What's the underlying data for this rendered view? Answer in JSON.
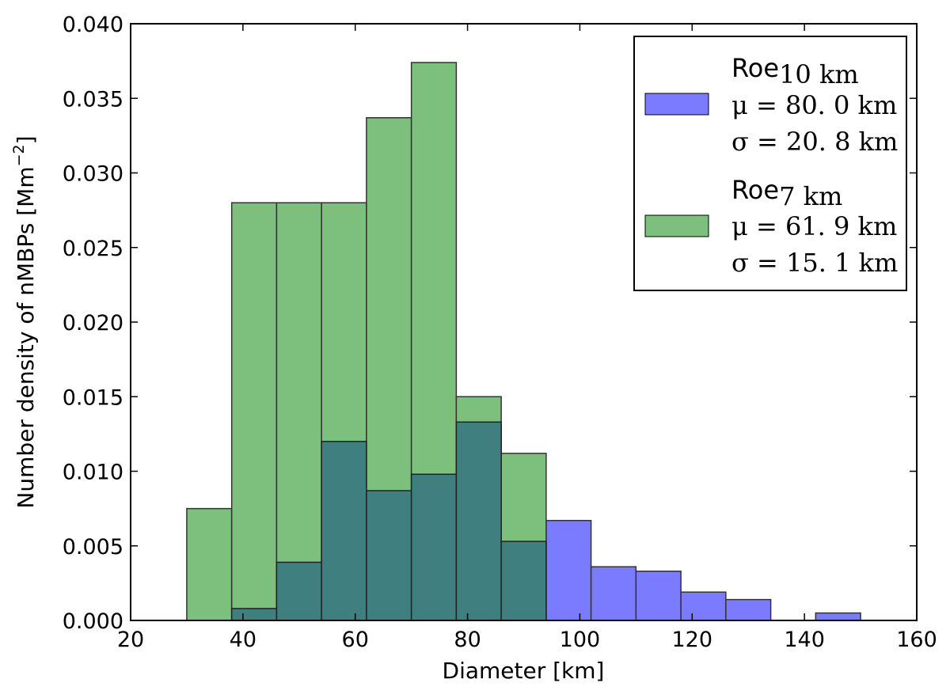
{
  "chart_data": {
    "type": "bar",
    "title": "",
    "xlabel": "Diameter [km]",
    "ylabel_main": "Number density of nMBPs [Mm",
    "ylabel_exp": "−2",
    "ylabel_close": "]",
    "xlim": [
      20,
      160
    ],
    "ylim": [
      0.0,
      0.04
    ],
    "xticks": [
      20,
      40,
      60,
      80,
      100,
      120,
      140,
      160
    ],
    "xtick_labels": [
      "20",
      "40",
      "60",
      "80",
      "100",
      "120",
      "140",
      "160"
    ],
    "yticks": [
      0.0,
      0.005,
      0.01,
      0.015,
      0.02,
      0.025,
      0.03,
      0.035,
      0.04
    ],
    "ytick_labels": [
      "0.000",
      "0.005",
      "0.010",
      "0.015",
      "0.020",
      "0.025",
      "0.030",
      "0.035",
      "0.040"
    ],
    "legend_position": "top-right",
    "series": [
      {
        "name": "Roe10km",
        "legend_base": "Roe",
        "legend_sub": "10 km",
        "legend_mu": "μ = 80. 0 km",
        "legend_sigma": "σ = 20. 8 km",
        "color": "#7b7bff",
        "bins": [
          {
            "x0": 38,
            "x1": 46,
            "value": 0.0008
          },
          {
            "x0": 46,
            "x1": 54,
            "value": 0.0039
          },
          {
            "x0": 54,
            "x1": 62,
            "value": 0.012
          },
          {
            "x0": 62,
            "x1": 70,
            "value": 0.0087
          },
          {
            "x0": 70,
            "x1": 78,
            "value": 0.0098
          },
          {
            "x0": 78,
            "x1": 86,
            "value": 0.0133
          },
          {
            "x0": 86,
            "x1": 94,
            "value": 0.0053
          },
          {
            "x0": 94,
            "x1": 102,
            "value": 0.0067
          },
          {
            "x0": 102,
            "x1": 110,
            "value": 0.0036
          },
          {
            "x0": 110,
            "x1": 118,
            "value": 0.0033
          },
          {
            "x0": 118,
            "x1": 126,
            "value": 0.0019
          },
          {
            "x0": 126,
            "x1": 134,
            "value": 0.0014
          },
          {
            "x0": 134,
            "x1": 142,
            "value": 0.0
          },
          {
            "x0": 142,
            "x1": 150,
            "value": 0.0005
          },
          {
            "x0": 150,
            "x1": 158,
            "value": 0.0
          }
        ]
      },
      {
        "name": "Roe7km",
        "legend_base": "Roe",
        "legend_sub": "7 km",
        "legend_mu": "μ = 61. 9 km",
        "legend_sigma": "σ = 15. 1 km",
        "color": "#7dc07d",
        "bins": [
          {
            "x0": 30,
            "x1": 38,
            "value": 0.0075
          },
          {
            "x0": 38,
            "x1": 46,
            "value": 0.028
          },
          {
            "x0": 46,
            "x1": 54,
            "value": 0.028
          },
          {
            "x0": 54,
            "x1": 62,
            "value": 0.028
          },
          {
            "x0": 62,
            "x1": 70,
            "value": 0.0337
          },
          {
            "x0": 70,
            "x1": 78,
            "value": 0.0374
          },
          {
            "x0": 78,
            "x1": 86,
            "value": 0.015
          },
          {
            "x0": 86,
            "x1": 94,
            "value": 0.0112
          }
        ]
      }
    ],
    "overlap_color": "#3f7f7f"
  }
}
